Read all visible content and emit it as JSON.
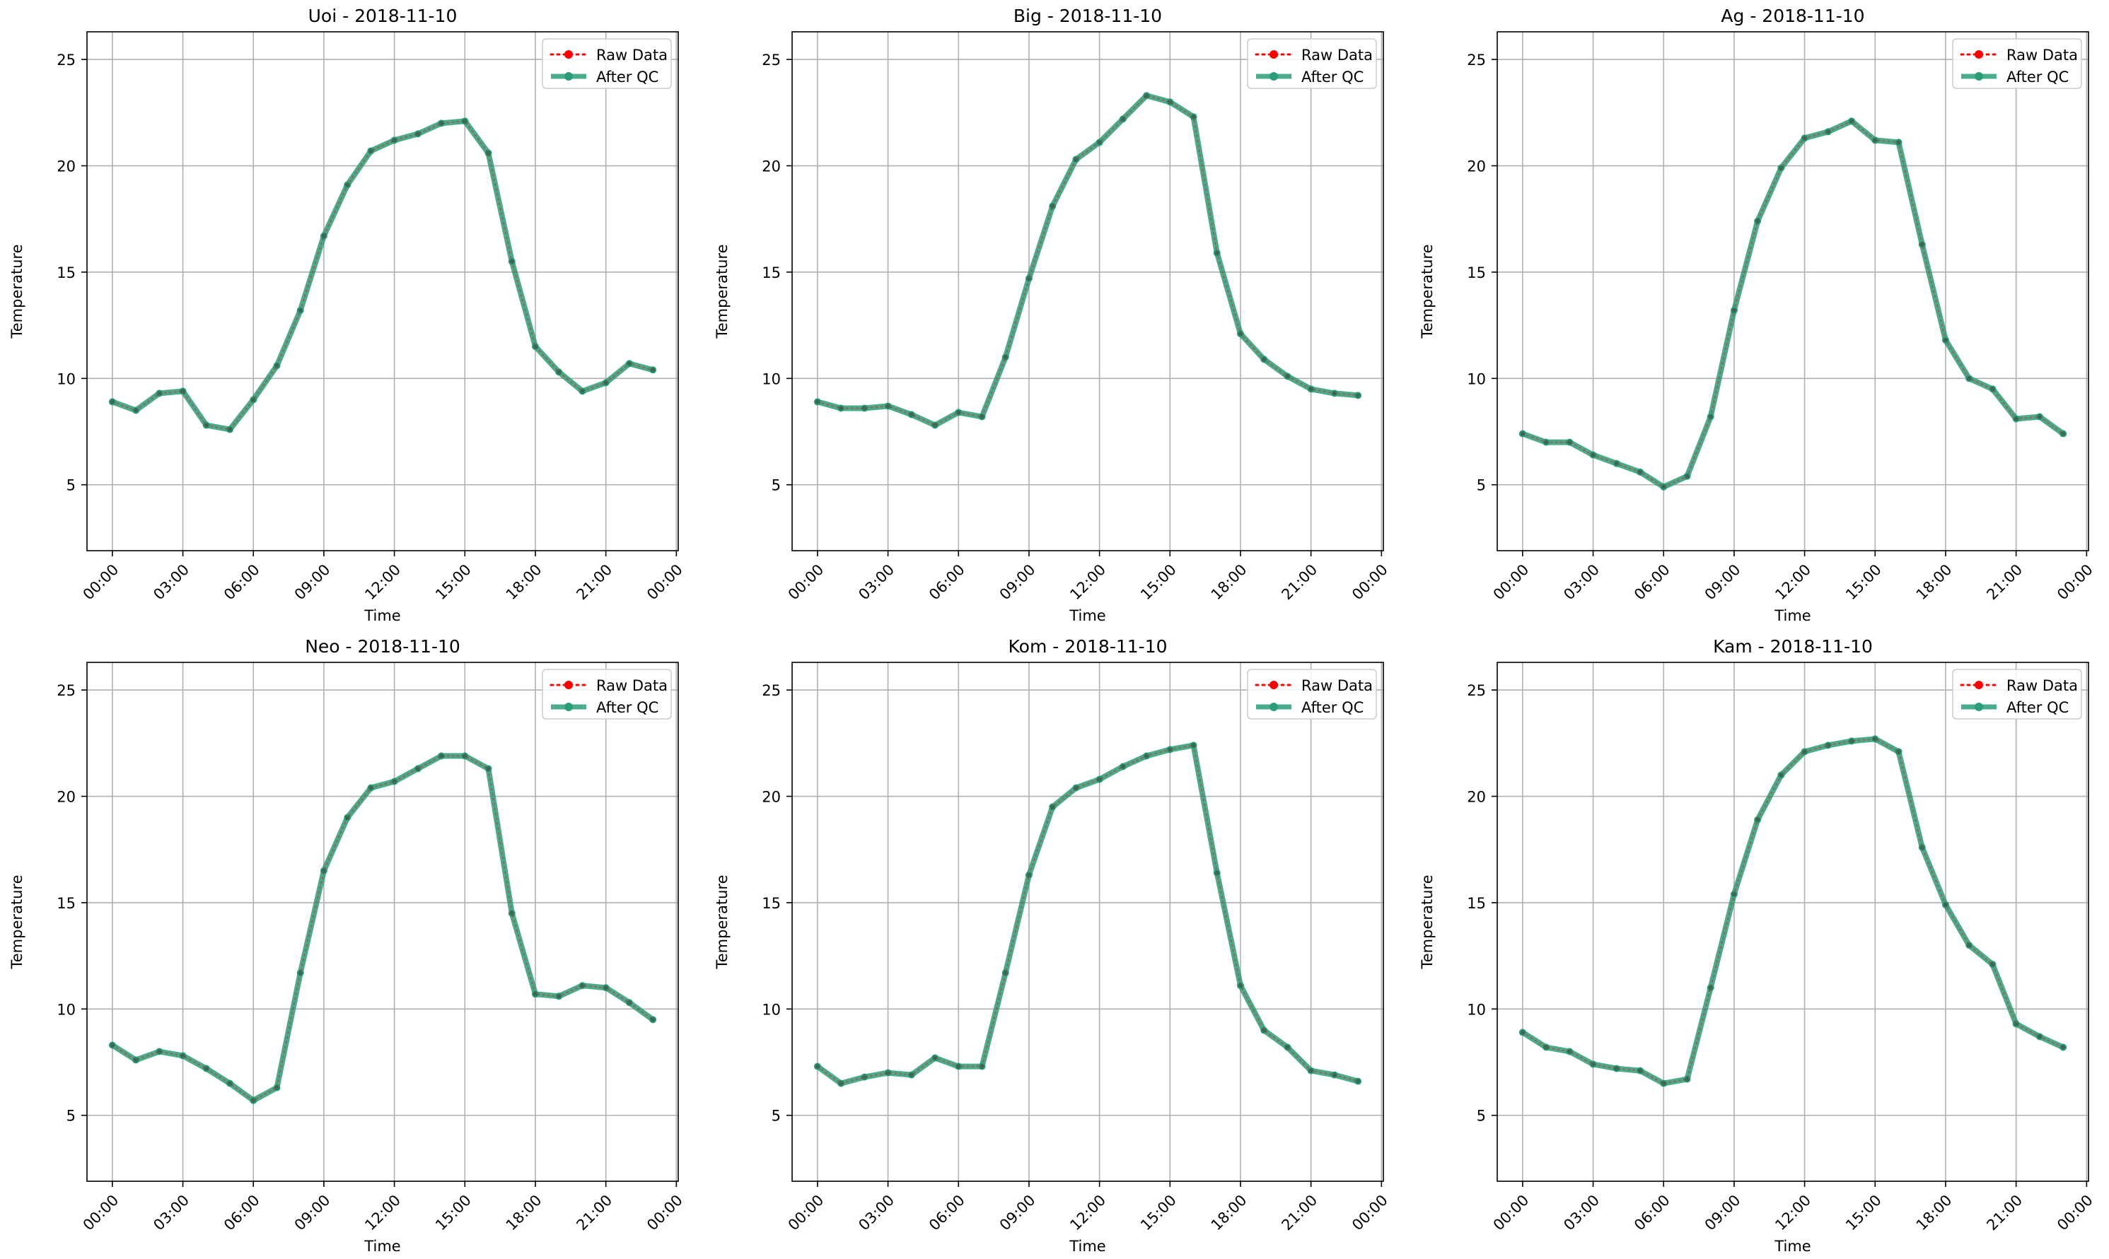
{
  "figure": {
    "panels_order": [
      "Uoi",
      "Big",
      "Ag",
      "Neo",
      "Kom",
      "Kam"
    ]
  },
  "chart_data": [
    {
      "type": "line",
      "title": "Uoi - 2018-11-10",
      "xlabel": "Time",
      "ylabel": "Temperature",
      "ylim": [
        1.9,
        26.3
      ],
      "yticks": [
        5,
        10,
        15,
        20,
        25
      ],
      "xlim_hours": [
        -1.08,
        24.08
      ],
      "xticks_hours": [
        0,
        3,
        6,
        9,
        12,
        15,
        18,
        21,
        24
      ],
      "xtick_labels": [
        "00:00",
        "03:00",
        "06:00",
        "09:00",
        "12:00",
        "15:00",
        "18:00",
        "21:00",
        "00:00"
      ],
      "grid": true,
      "legend_position": "top-right",
      "legend": [
        "Raw Data",
        "After QC"
      ],
      "x_hours": [
        0,
        1,
        2,
        3,
        4,
        5,
        6,
        7,
        8,
        9,
        10,
        11,
        12,
        13,
        14,
        15,
        16,
        17,
        18,
        19,
        20,
        21,
        22,
        23
      ],
      "series": [
        {
          "name": "Raw Data",
          "color": "#ff0000",
          "style": "dotted",
          "values": [
            8.9,
            8.5,
            9.3,
            9.4,
            7.8,
            7.6,
            9.0,
            10.6,
            13.2,
            16.7,
            19.1,
            20.7,
            21.2,
            21.5,
            22.0,
            22.1,
            20.6,
            15.5,
            11.5,
            10.3,
            9.4,
            9.8,
            10.7,
            10.4
          ]
        },
        {
          "name": "After QC",
          "color": "#2a9d78",
          "style": "solid",
          "values": [
            8.9,
            8.5,
            9.3,
            9.4,
            7.8,
            7.6,
            9.0,
            10.6,
            13.2,
            16.7,
            19.1,
            20.7,
            21.2,
            21.5,
            22.0,
            22.1,
            20.6,
            15.5,
            11.5,
            10.3,
            9.4,
            9.8,
            10.7,
            10.4
          ]
        }
      ]
    },
    {
      "type": "line",
      "title": "Big - 2018-11-10",
      "xlabel": "Time",
      "ylabel": "Temperature",
      "ylim": [
        1.9,
        26.3
      ],
      "yticks": [
        5,
        10,
        15,
        20,
        25
      ],
      "xlim_hours": [
        -1.08,
        24.08
      ],
      "xticks_hours": [
        0,
        3,
        6,
        9,
        12,
        15,
        18,
        21,
        24
      ],
      "xtick_labels": [
        "00:00",
        "03:00",
        "06:00",
        "09:00",
        "12:00",
        "15:00",
        "18:00",
        "21:00",
        "00:00"
      ],
      "grid": true,
      "legend_position": "top-right",
      "legend": [
        "Raw Data",
        "After QC"
      ],
      "x_hours": [
        0,
        1,
        2,
        3,
        4,
        5,
        6,
        7,
        8,
        9,
        10,
        11,
        12,
        13,
        14,
        15,
        16,
        17,
        18,
        19,
        20,
        21,
        22,
        23
      ],
      "series": [
        {
          "name": "Raw Data",
          "color": "#ff0000",
          "style": "dotted",
          "values": [
            8.9,
            8.6,
            8.6,
            8.7,
            8.3,
            7.8,
            8.4,
            8.2,
            11.0,
            14.7,
            18.1,
            20.3,
            21.1,
            22.2,
            23.3,
            23.0,
            22.3,
            15.9,
            12.1,
            10.9,
            10.1,
            9.5,
            9.3,
            9.2
          ]
        },
        {
          "name": "After QC",
          "color": "#2a9d78",
          "style": "solid",
          "values": [
            8.9,
            8.6,
            8.6,
            8.7,
            8.3,
            7.8,
            8.4,
            8.2,
            11.0,
            14.7,
            18.1,
            20.3,
            21.1,
            22.2,
            23.3,
            23.0,
            22.3,
            15.9,
            12.1,
            10.9,
            10.1,
            9.5,
            9.3,
            9.2
          ]
        }
      ]
    },
    {
      "type": "line",
      "title": "Ag - 2018-11-10",
      "xlabel": "Time",
      "ylabel": "Temperature",
      "ylim": [
        1.9,
        26.3
      ],
      "yticks": [
        5,
        10,
        15,
        20,
        25
      ],
      "xlim_hours": [
        -1.08,
        24.08
      ],
      "xticks_hours": [
        0,
        3,
        6,
        9,
        12,
        15,
        18,
        21,
        24
      ],
      "xtick_labels": [
        "00:00",
        "03:00",
        "06:00",
        "09:00",
        "12:00",
        "15:00",
        "18:00",
        "21:00",
        "00:00"
      ],
      "grid": true,
      "legend_position": "top-right",
      "legend": [
        "Raw Data",
        "After QC"
      ],
      "x_hours": [
        0,
        1,
        2,
        3,
        4,
        5,
        6,
        7,
        8,
        9,
        10,
        11,
        12,
        13,
        14,
        15,
        16,
        17,
        18,
        19,
        20,
        21,
        22,
        23
      ],
      "series": [
        {
          "name": "Raw Data",
          "color": "#ff0000",
          "style": "dotted",
          "values": [
            7.4,
            7.0,
            7.0,
            6.4,
            6.0,
            5.6,
            4.9,
            5.4,
            8.2,
            13.2,
            17.4,
            19.9,
            21.3,
            21.6,
            22.1,
            21.2,
            21.1,
            16.3,
            11.8,
            10.0,
            9.5,
            8.1,
            8.2,
            7.4
          ]
        },
        {
          "name": "After QC",
          "color": "#2a9d78",
          "style": "solid",
          "values": [
            7.4,
            7.0,
            7.0,
            6.4,
            6.0,
            5.6,
            4.9,
            5.4,
            8.2,
            13.2,
            17.4,
            19.9,
            21.3,
            21.6,
            22.1,
            21.2,
            21.1,
            16.3,
            11.8,
            10.0,
            9.5,
            8.1,
            8.2,
            7.4
          ]
        }
      ]
    },
    {
      "type": "line",
      "title": "Neo - 2018-11-10",
      "xlabel": "Time",
      "ylabel": "Temperature",
      "ylim": [
        1.9,
        26.3
      ],
      "yticks": [
        5,
        10,
        15,
        20,
        25
      ],
      "xlim_hours": [
        -1.08,
        24.08
      ],
      "xticks_hours": [
        0,
        3,
        6,
        9,
        12,
        15,
        18,
        21,
        24
      ],
      "xtick_labels": [
        "00:00",
        "03:00",
        "06:00",
        "09:00",
        "12:00",
        "15:00",
        "18:00",
        "21:00",
        "00:00"
      ],
      "grid": true,
      "legend_position": "top-right",
      "legend": [
        "Raw Data",
        "After QC"
      ],
      "x_hours": [
        0,
        1,
        2,
        3,
        4,
        5,
        6,
        7,
        8,
        9,
        10,
        11,
        12,
        13,
        14,
        15,
        16,
        17,
        18,
        19,
        20,
        21,
        22,
        23
      ],
      "series": [
        {
          "name": "Raw Data",
          "color": "#ff0000",
          "style": "dotted",
          "values": [
            8.3,
            7.6,
            8.0,
            7.8,
            7.2,
            6.5,
            5.7,
            6.3,
            11.7,
            16.5,
            19.0,
            20.4,
            20.7,
            21.3,
            21.9,
            21.9,
            21.3,
            14.5,
            10.7,
            10.6,
            11.1,
            11.0,
            10.3,
            9.5
          ]
        },
        {
          "name": "After QC",
          "color": "#2a9d78",
          "style": "solid",
          "values": [
            8.3,
            7.6,
            8.0,
            7.8,
            7.2,
            6.5,
            5.7,
            6.3,
            11.7,
            16.5,
            19.0,
            20.4,
            20.7,
            21.3,
            21.9,
            21.9,
            21.3,
            14.5,
            10.7,
            10.6,
            11.1,
            11.0,
            10.3,
            9.5
          ]
        }
      ]
    },
    {
      "type": "line",
      "title": "Kom - 2018-11-10",
      "xlabel": "Time",
      "ylabel": "Temperature",
      "ylim": [
        1.9,
        26.3
      ],
      "yticks": [
        5,
        10,
        15,
        20,
        25
      ],
      "xlim_hours": [
        -1.08,
        24.08
      ],
      "xticks_hours": [
        0,
        3,
        6,
        9,
        12,
        15,
        18,
        21,
        24
      ],
      "xtick_labels": [
        "00:00",
        "03:00",
        "06:00",
        "09:00",
        "12:00",
        "15:00",
        "18:00",
        "21:00",
        "00:00"
      ],
      "grid": true,
      "legend_position": "top-right",
      "legend": [
        "Raw Data",
        "After QC"
      ],
      "x_hours": [
        0,
        1,
        2,
        3,
        4,
        5,
        6,
        7,
        8,
        9,
        10,
        11,
        12,
        13,
        14,
        15,
        16,
        17,
        18,
        19,
        20,
        21,
        22,
        23
      ],
      "series": [
        {
          "name": "Raw Data",
          "color": "#ff0000",
          "style": "dotted",
          "values": [
            7.3,
            6.5,
            6.8,
            7.0,
            6.9,
            7.7,
            7.3,
            7.3,
            11.7,
            16.3,
            19.5,
            20.4,
            20.8,
            21.4,
            21.9,
            22.2,
            22.4,
            16.4,
            11.1,
            9.0,
            8.2,
            7.1,
            6.9,
            6.6
          ]
        },
        {
          "name": "After QC",
          "color": "#2a9d78",
          "style": "solid",
          "values": [
            7.3,
            6.5,
            6.8,
            7.0,
            6.9,
            7.7,
            7.3,
            7.3,
            11.7,
            16.3,
            19.5,
            20.4,
            20.8,
            21.4,
            21.9,
            22.2,
            22.4,
            16.4,
            11.1,
            9.0,
            8.2,
            7.1,
            6.9,
            6.6
          ]
        }
      ]
    },
    {
      "type": "line",
      "title": "Kam - 2018-11-10",
      "xlabel": "Time",
      "ylabel": "Temperature",
      "ylim": [
        1.9,
        26.3
      ],
      "yticks": [
        5,
        10,
        15,
        20,
        25
      ],
      "xlim_hours": [
        -1.08,
        24.08
      ],
      "xticks_hours": [
        0,
        3,
        6,
        9,
        12,
        15,
        18,
        21,
        24
      ],
      "xtick_labels": [
        "00:00",
        "03:00",
        "06:00",
        "09:00",
        "12:00",
        "15:00",
        "18:00",
        "21:00",
        "00:00"
      ],
      "grid": true,
      "legend_position": "top-right",
      "legend": [
        "Raw Data",
        "After QC"
      ],
      "x_hours": [
        0,
        1,
        2,
        3,
        4,
        5,
        6,
        7,
        8,
        9,
        10,
        11,
        12,
        13,
        14,
        15,
        16,
        17,
        18,
        19,
        20,
        21,
        22,
        23
      ],
      "series": [
        {
          "name": "Raw Data",
          "color": "#ff0000",
          "style": "dotted",
          "values": [
            8.9,
            8.2,
            8.0,
            7.4,
            7.2,
            7.1,
            6.5,
            6.7,
            11.0,
            15.4,
            18.9,
            21.0,
            22.1,
            22.4,
            22.6,
            22.7,
            22.1,
            17.6,
            14.9,
            13.0,
            12.1,
            9.3,
            8.7,
            8.2
          ]
        },
        {
          "name": "After QC",
          "color": "#2a9d78",
          "style": "solid",
          "values": [
            8.9,
            8.2,
            8.0,
            7.4,
            7.2,
            7.1,
            6.5,
            6.7,
            11.0,
            15.4,
            18.9,
            21.0,
            22.1,
            22.4,
            22.6,
            22.7,
            22.1,
            17.6,
            14.9,
            13.0,
            12.1,
            9.3,
            8.7,
            8.2
          ]
        }
      ]
    }
  ]
}
